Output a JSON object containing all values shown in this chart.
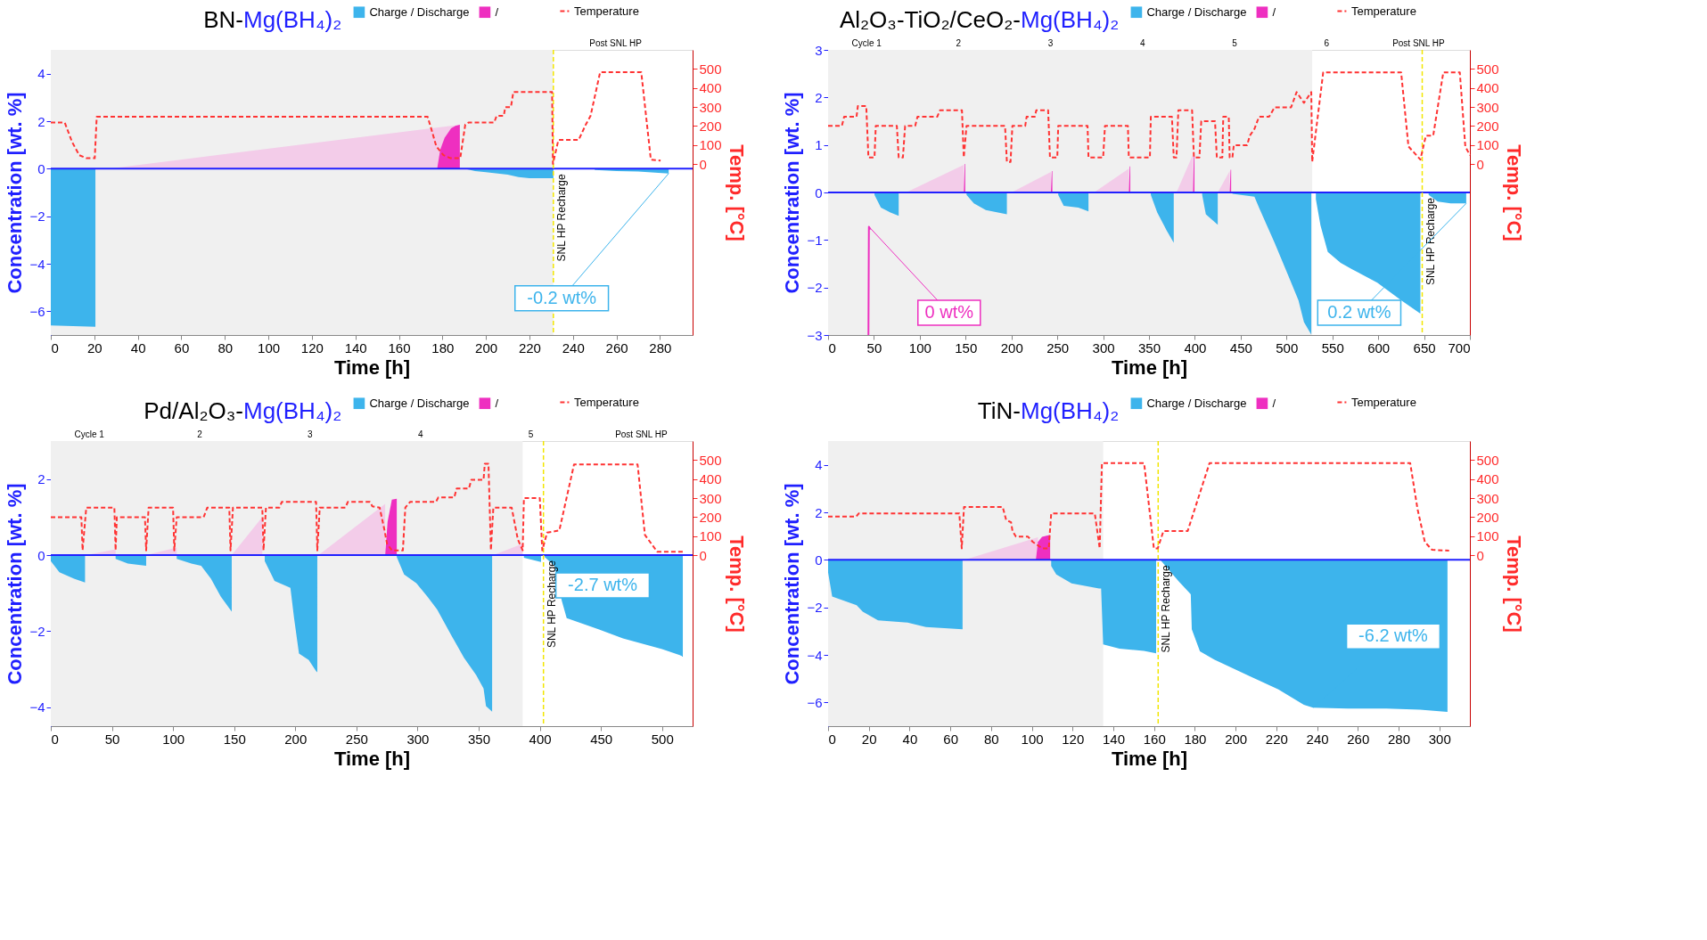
{
  "chart_data": [
    {
      "type": "area",
      "title": "BN-Mg(BH₄)₂",
      "xlabel": "Time [h]",
      "ylabel": "Concentration [wt. %]",
      "y2label": "Temp. [°C]",
      "xlim": [
        0,
        295
      ],
      "xticks": [
        0,
        20,
        40,
        60,
        80,
        100,
        120,
        140,
        160,
        180,
        200,
        220,
        240,
        260,
        280
      ],
      "ylim": [
        -7,
        5
      ],
      "yticks": [
        -6,
        -4,
        -2,
        0,
        2,
        4
      ],
      "y2lim": [
        -900,
        600
      ],
      "y2ticks": [
        0,
        100,
        200,
        300,
        400,
        500
      ],
      "legend": "top right",
      "series": [
        {
          "color": "#f3cce9",
          "x": [
            27,
            188
          ],
          "values": [
            0,
            1.85
          ]
        },
        {
          "name": "Charge / Discharge",
          "color": "#3db4ec",
          "x": [
            0,
            20.5,
            21,
            190,
            195,
            200,
            210,
            215,
            220,
            231,
            232,
            250,
            260,
            270,
            284
          ],
          "values": [
            -6.6,
            -6.65,
            null,
            0,
            -0.1,
            -0.15,
            -0.25,
            -0.35,
            -0.4,
            -0.4,
            null,
            -0.05,
            -0.1,
            -0.12,
            -0.2
          ]
        },
        {
          "name": "/",
          "color": "#ee2fc0",
          "x": [
            177.6,
            179,
            181,
            184,
            186,
            188
          ],
          "values": [
            0,
            0.8,
            1.3,
            1.7,
            1.8,
            1.85
          ]
        },
        {
          "name": "Temperature",
          "color": "#ff3333",
          "type": "line",
          "axis": "y2",
          "line_style": "dashed",
          "x": [
            0,
            6.4,
            9.8,
            13.1,
            16.4,
            20.2,
            21.1,
            173.2,
            174.9,
            177.2,
            180.5,
            183.8,
            188.2,
            190.5,
            192,
            203.8,
            204.9,
            208.2,
            208.9,
            211.5,
            212.6,
            230.4,
            230.8,
            233.3,
            242.6,
            245.9,
            248.1,
            252.5,
            271.4,
            273.6,
            275.8,
            280.3
          ],
          "values": [
            218,
            218,
            115,
            46,
            30,
            30,
            248,
            248,
            184,
            92,
            46,
            30,
            30,
            207,
            218,
            218,
            253,
            253,
            299,
            299,
            379,
            379,
            0,
            126,
            126,
            207,
            253,
            483,
            483,
            253,
            23,
            18
          ]
        }
      ],
      "bands": [
        {
          "axis": "x",
          "from": 0,
          "to": 231,
          "color": "#f0f0f0"
        }
      ],
      "ref_lines": [
        {
          "axis": "y",
          "value": 0,
          "color": "#2020ff"
        },
        {
          "axis": "x",
          "value": 231,
          "label": "SNL HP Recharge",
          "color": "#f2e600",
          "line_style": "dashed"
        }
      ],
      "annotations": [
        {
          "text": "-0.2 wt%",
          "x": 284,
          "y": -0.2
        },
        "Post SNL HP"
      ]
    },
    {
      "type": "area",
      "title": "Al₂O₃-TiO₂/CeO₂-Mg(BH₄)₂",
      "xlabel": "Time [h]",
      "ylabel": "Concentration [wt. %]",
      "y2label": "Temp. [°C]",
      "xlim": [
        0,
        700
      ],
      "xticks": [
        0,
        50,
        100,
        150,
        200,
        250,
        300,
        350,
        400,
        450,
        500,
        550,
        600,
        650,
        700
      ],
      "ylim": [
        -3,
        3
      ],
      "yticks": [
        -3,
        -2,
        -1,
        0,
        1,
        2,
        3
      ],
      "y2lim": [
        -900,
        600
      ],
      "y2ticks": [
        0,
        100,
        200,
        300,
        400,
        500
      ],
      "legend": "top right",
      "series": [
        {
          "color": "#f3cce9",
          "x": [
            85,
            148,
            148.5,
            200,
            243,
            243.5,
            290,
            328,
            328.5,
            380,
            398,
            398.5,
            425,
            438
          ],
          "values": [
            0,
            0.58,
            null,
            0,
            0.43,
            null,
            0,
            0.5,
            null,
            0,
            0.8,
            null,
            0,
            0.45
          ]
        },
        {
          "name": "Charge / Discharge",
          "color": "#3db4ec",
          "x": [
            50.6,
            57.6,
            68,
            77,
            78,
            151,
            159,
            172,
            195,
            196,
            251,
            257,
            273,
            284,
            285,
            352,
            359,
            369,
            377,
            378,
            408,
            412,
            425,
            426,
            441,
            465,
            470,
            487,
            503,
            513,
            519,
            527,
            529,
            532,
            537,
            545,
            559,
            572,
            599,
            625,
            646,
            650,
            655,
            665,
            679,
            696
          ],
          "values": [
            -0.05,
            -0.32,
            -0.42,
            -0.49,
            null,
            -0.05,
            -0.23,
            -0.37,
            -0.46,
            null,
            -0.05,
            -0.28,
            -0.32,
            -0.4,
            null,
            -0.05,
            -0.42,
            -0.79,
            -1.06,
            null,
            -0.05,
            -0.46,
            -0.68,
            null,
            -0.03,
            -0.09,
            -0.32,
            -1.06,
            -1.8,
            -2.27,
            -2.73,
            -2.99,
            null,
            -0.14,
            -0.69,
            -1.25,
            -1.48,
            -1.62,
            -1.9,
            -2.27,
            -2.55,
            null,
            -0.05,
            -0.19,
            -0.23,
            -0.23
          ]
        },
        {
          "name": "/",
          "color": "#ee2fc0",
          "x": [
            148,
            149,
            149.6,
            150,
            243,
            244,
            244.6,
            245,
            328,
            329,
            329.6,
            330,
            398,
            399,
            399.6,
            400,
            438,
            439,
            439.6
          ],
          "values": [
            0,
            0.6,
            0.6,
            null,
            0,
            0.45,
            0.45,
            null,
            0,
            0.55,
            0.55,
            null,
            0,
            0.85,
            0.85,
            null,
            0,
            0.48,
            0.48
          ]
        },
        {
          "color": "#ee2fc0",
          "type": "line",
          "x": [
            44,
            44.5,
            46
          ],
          "values": [
            -3,
            -0.72,
            -0.78
          ]
        },
        {
          "name": "Temperature",
          "color": "#ff3333",
          "type": "line",
          "axis": "y2",
          "line_style": "dashed",
          "x": [
            0,
            15,
            17.5,
            31,
            32.5,
            41.6,
            44,
            50.6,
            52,
            75,
            77,
            81.6,
            84,
            95,
            97.5,
            119,
            122,
            146,
            148,
            151,
            193,
            195,
            199,
            201,
            215,
            216.5,
            225.5,
            227,
            240,
            242,
            250,
            251,
            283,
            284,
            300,
            302,
            327,
            328,
            351,
            352,
            375,
            377,
            380,
            382,
            397,
            399,
            405,
            407,
            422,
            424,
            430,
            431,
            437,
            438,
            441,
            442.5,
            457,
            460,
            465,
            470,
            481,
            487,
            505,
            511,
            519,
            527,
            528,
            540,
            625,
            633,
            646,
            652,
            660,
            671,
            689,
            695,
            700
          ],
          "values": [
            200,
            200,
            248,
            248,
            305,
            305,
            34,
            34,
            200,
            200,
            34,
            34,
            200,
            200,
            248,
            248,
            282,
            282,
            34,
            200,
            200,
            11,
            11,
            200,
            200,
            248,
            248,
            282,
            282,
            34,
            34,
            200,
            200,
            34,
            34,
            200,
            200,
            34,
            34,
            248,
            248,
            34,
            34,
            282,
            282,
            34,
            34,
            225,
            225,
            34,
            34,
            248,
            248,
            34,
            34,
            99,
            99,
            149,
            184,
            248,
            248,
            298,
            298,
            378,
            321,
            378,
            11,
            482,
            482,
            92,
            23,
            149,
            149,
            482,
            482,
            92,
            46
          ]
        }
      ],
      "bands": [
        {
          "axis": "x",
          "from": 0,
          "to": 528,
          "color": "#f0f0f0"
        }
      ],
      "ref_lines": [
        {
          "axis": "y",
          "value": 0,
          "color": "#2020ff"
        },
        {
          "axis": "x",
          "value": 648,
          "label": "SNL HP Recharge",
          "color": "#f2e600",
          "line_style": "dashed"
        }
      ],
      "annotations": [
        {
          "text": "0 wt%",
          "x": 44.5,
          "y": -0.72
        },
        {
          "text": "0.2 wt%",
          "x": 696,
          "y": -0.23
        },
        "Cycle 1",
        "2",
        "3",
        "4",
        "5",
        "6",
        "Post SNL HP"
      ]
    },
    {
      "type": "area",
      "title": "Pd/Al₂O₃-Mg(BH₄)₂",
      "xlabel": "Time [h]",
      "ylabel": "Concentration [wt. %]",
      "y2label": "Temp. [°C]",
      "xlim": [
        0,
        525
      ],
      "xticks": [
        0,
        50,
        100,
        150,
        200,
        250,
        300,
        350,
        400,
        450,
        500
      ],
      "ylim": [
        -4.5,
        3
      ],
      "yticks": [
        -4,
        -2,
        0,
        2
      ],
      "y2lim": [
        -900,
        600
      ],
      "y2ticks": [
        0,
        100,
        200,
        300,
        400,
        500
      ],
      "legend": "top right",
      "series": [
        {
          "color": "#f3cce9",
          "x": [
            29,
            53,
            53.5,
            78,
            103,
            103.5,
            148,
            173,
            173.5,
            219,
            273.5,
            274,
            362,
            386
          ],
          "values": [
            0,
            0.15,
            null,
            0,
            0.2,
            null,
            0,
            1.0,
            null,
            0,
            1.35,
            null,
            0,
            0.3
          ]
        },
        {
          "name": "Charge / Discharge",
          "color": "#3db4ec",
          "x": [
            0,
            7,
            19,
            28,
            29,
            53,
            63,
            78,
            79,
            103,
            115,
            123,
            131,
            139,
            148,
            149,
            175,
            183,
            196,
            199,
            203,
            211,
            217,
            218,
            219,
            283,
            289,
            299,
            308,
            316,
            328,
            338,
            348,
            354,
            356,
            361,
            362,
            387,
            401,
            402,
            404,
            412,
            418,
            422,
            448,
            468,
            500,
            516,
            517
          ],
          "values": [
            -0.16,
            -0.45,
            -0.62,
            -0.72,
            null,
            -0.1,
            -0.22,
            -0.28,
            null,
            -0.1,
            -0.22,
            -0.28,
            -0.62,
            -1.09,
            -1.49,
            null,
            -0.16,
            -0.68,
            -0.86,
            -1.66,
            -2.59,
            -2.76,
            -3.05,
            -3.08,
            null,
            -0.05,
            -0.51,
            -0.74,
            -1.09,
            -1.43,
            -2.13,
            -2.7,
            -3.16,
            -3.51,
            -3.97,
            -4.12,
            null,
            -0.07,
            -0.18,
            null,
            -0.05,
            -0.28,
            -1.2,
            -1.66,
            -1.95,
            -2.19,
            -2.47,
            -2.65,
            -2.67
          ]
        },
        {
          "name": "/",
          "color": "#ee2fc0",
          "x": [
            273.5,
            275.5,
            279,
            283
          ],
          "values": [
            0,
            0.88,
            1.46,
            1.48
          ]
        },
        {
          "name": "Temperature",
          "color": "#ff3333",
          "type": "line",
          "axis": "y2",
          "line_style": "dashed",
          "x": [
            0,
            25,
            26,
            29,
            52,
            53,
            54,
            77,
            78,
            80,
            100,
            101,
            103,
            125,
            128,
            146,
            147,
            149,
            173,
            174,
            176,
            187,
            189,
            217,
            218,
            220,
            241,
            243,
            261,
            263,
            269,
            273,
            275,
            279,
            288,
            290,
            294,
            315,
            317,
            330,
            332,
            342,
            344,
            354,
            355,
            358,
            360,
            362,
            377,
            382,
            386,
            387,
            400,
            402,
            406,
            416,
            428,
            480,
            486,
            496,
            518
          ],
          "values": [
            199,
            199,
            25,
            250,
            250,
            25,
            199,
            199,
            25,
            250,
            250,
            25,
            199,
            199,
            250,
            250,
            25,
            250,
            250,
            25,
            250,
            250,
            280,
            280,
            25,
            250,
            250,
            280,
            280,
            257,
            250,
            130,
            60,
            25,
            25,
            250,
            280,
            280,
            303,
            303,
            350,
            350,
            396,
            396,
            481,
            481,
            25,
            250,
            250,
            83,
            25,
            300,
            300,
            25,
            118,
            130,
            477,
            477,
            106,
            18,
            18
          ]
        }
      ],
      "bands": [
        {
          "axis": "x",
          "from": 0,
          "to": 386,
          "color": "#f0f0f0"
        }
      ],
      "ref_lines": [
        {
          "axis": "y",
          "value": 0,
          "color": "#2020ff"
        },
        {
          "axis": "x",
          "value": 403,
          "label": "SNL HP Recharge",
          "color": "#f2e600",
          "line_style": "dashed"
        }
      ],
      "annotations": [
        {
          "text": "-2.7 wt%",
          "x": 517,
          "y": -2.67
        },
        "Cycle 1",
        "2",
        "3",
        "4",
        "5",
        "Post SNL HP"
      ]
    },
    {
      "type": "area",
      "title": "TiN-Mg(BH₄)₂",
      "xlabel": "Time [h]",
      "ylabel": "Concentration [wt. %]",
      "y2label": "Temp. [°C]",
      "xlim": [
        0,
        315
      ],
      "xticks": [
        0,
        20,
        40,
        60,
        80,
        100,
        120,
        140,
        160,
        180,
        200,
        220,
        240,
        260,
        280,
        300
      ],
      "ylim": [
        -7,
        5
      ],
      "yticks": [
        -6,
        -4,
        -2,
        0,
        2,
        4
      ],
      "y2lim": [
        -900,
        600
      ],
      "y2ticks": [
        0,
        100,
        200,
        300,
        400,
        500
      ],
      "legend": "top right",
      "series": [
        {
          "color": "#f3cce9",
          "x": [
            67,
            103
          ],
          "values": [
            0,
            0.95
          ]
        },
        {
          "name": "Charge / Discharge",
          "color": "#3db4ec",
          "x": [
            0,
            2,
            14,
            17,
            24.5,
            39,
            48,
            66,
            67,
            109.5,
            112,
            119.5,
            133,
            134,
            135,
            143,
            155,
            161,
            162,
            163,
            172,
            177,
            178,
            178.5,
            182.5,
            189.5,
            207,
            221,
            233.5,
            238,
            255,
            274,
            290.5,
            304
          ],
          "values": [
            -0.53,
            -1.54,
            -1.91,
            -2.18,
            -2.55,
            -2.64,
            -2.83,
            -2.92,
            null,
            -0.26,
            -0.62,
            -0.99,
            -1.21,
            -1.21,
            -3.56,
            -3.74,
            -3.83,
            -3.93,
            null,
            0,
            -0.9,
            -1.36,
            -1.45,
            -2.92,
            -3.85,
            -4.2,
            -4.9,
            -5.45,
            -6.1,
            -6.22,
            -6.26,
            -6.26,
            -6.31,
            -6.4
          ]
        },
        {
          "name": "/",
          "color": "#ee2fc0",
          "x": [
            102,
            103,
            105,
            109
          ],
          "values": [
            0,
            0.75,
            0.97,
            1.05
          ]
        },
        {
          "name": "Temperature",
          "color": "#ff3333",
          "type": "line",
          "axis": "y2",
          "line_style": "dashed",
          "x": [
            0,
            13.8,
            15,
            64.4,
            65.6,
            66.7,
            85.7,
            87.4,
            89.8,
            90.5,
            92.2,
            98.1,
            100.5,
            105.2,
            108.3,
            109.5,
            130.9,
            133.3,
            134.4,
            155.1,
            159.9,
            161.8,
            164.6,
            176.5,
            178.9,
            187.2,
            285.7,
            289.3,
            292.9,
            296.4,
            304.8
          ],
          "values": [
            203,
            203,
            219,
            219,
            35,
            253,
            253,
            184,
            173,
            127,
            97,
            97,
            69,
            35,
            35,
            219,
            219,
            35,
            484,
            484,
            35,
            35,
            127,
            127,
            207,
            484,
            484,
            242,
            69,
            28,
            23
          ]
        }
      ],
      "bands": [
        {
          "axis": "x",
          "from": 0,
          "to": 135,
          "color": "#f0f0f0"
        }
      ],
      "ref_lines": [
        {
          "axis": "y",
          "value": 0,
          "color": "#2020ff"
        },
        {
          "axis": "x",
          "value": 162,
          "label": "SNL HP Recharge",
          "color": "#f2e600",
          "line_style": "dashed"
        }
      ],
      "annotations": [
        {
          "text": "-6.2 wt%",
          "x": 238,
          "y": -6.22
        }
      ]
    }
  ]
}
